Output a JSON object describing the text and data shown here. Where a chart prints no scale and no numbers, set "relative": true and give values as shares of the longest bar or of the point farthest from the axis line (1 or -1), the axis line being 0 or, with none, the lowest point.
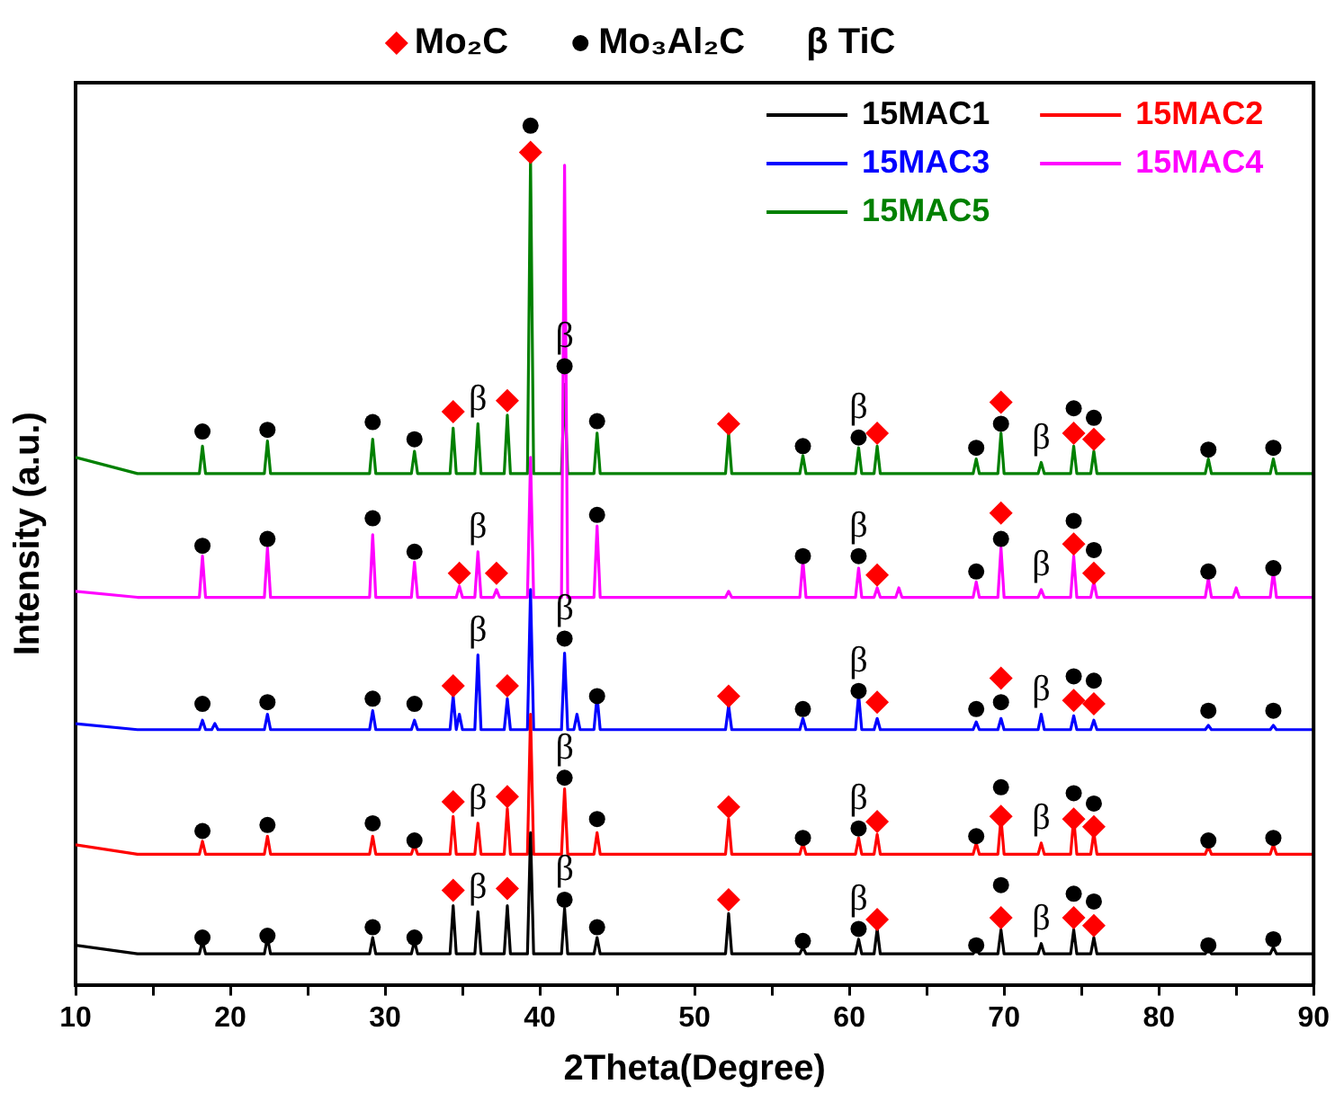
{
  "chart_data": {
    "type": "line",
    "relative": true,
    "xlabel": "2Theta(Degree)",
    "ylabel": "Intensity (a.u.)",
    "xlim": [
      10,
      90
    ],
    "xticks": [
      10,
      {
        "value": 15,
        "label": null
      },
      20,
      {
        "value": 25,
        "label": null
      },
      30,
      {
        "value": 35,
        "label": null
      },
      40,
      {
        "value": 45,
        "label": null
      },
      50,
      {
        "value": 55,
        "label": null
      },
      60,
      {
        "value": 65,
        "label": null
      },
      70,
      {
        "value": 75,
        "label": null
      },
      80,
      {
        "value": 85,
        "label": null
      },
      90
    ],
    "legend": "top right",
    "grid": false,
    "x": [
      10,
      14,
      18.0,
      18.2,
      18.4,
      18.8,
      19,
      19.2,
      22.2,
      22.4,
      22.6,
      29.0,
      29.2,
      29.4,
      31.7,
      31.9,
      32.1,
      34.2,
      34.4,
      34.6,
      34.8,
      35.0,
      35.8,
      36,
      36.2,
      37.0,
      37.2,
      37.4,
      37.7,
      37.9,
      38.1,
      39.2,
      39.4,
      39.6,
      41.4,
      41.6,
      41.8,
      42.2,
      42.4,
      42.6,
      43.5,
      43.7,
      43.9,
      52.0,
      52.2,
      52.4,
      56.8,
      57,
      57.2,
      60.4,
      60.6,
      60.8,
      61.6,
      61.8,
      62.0,
      63.0,
      63.2,
      63.4,
      68.0,
      68.2,
      68.4,
      69.6,
      69.8,
      70.0,
      72.2,
      72.4,
      72.6,
      74.3,
      74.5,
      74.7,
      75.6,
      75.8,
      76.0,
      83.0,
      83.2,
      83.4,
      84.8,
      85,
      85.2,
      87.2,
      87.4,
      87.6,
      90
    ],
    "series": [
      {
        "name": "15MAC1",
        "type": "line",
        "color": "#000000",
        "values": [
          0.046,
          0.036,
          0.036,
          0.051,
          0.036,
          0.036,
          0.036,
          0.036,
          0.036,
          0.055,
          0.036,
          0.036,
          0.055,
          0.036,
          0.036,
          0.051,
          0.036,
          0.036,
          0.092,
          0.036,
          0.036,
          0.036,
          0.036,
          0.085,
          0.036,
          0.036,
          0.036,
          0.036,
          0.036,
          0.092,
          0.036,
          0.036,
          0.177,
          0.036,
          0.036,
          0.089,
          0.036,
          0.036,
          0.036,
          0.036,
          0.036,
          0.055,
          0.036,
          0.036,
          0.083,
          0.036,
          0.036,
          0.044,
          0.036,
          0.036,
          0.053,
          0.036,
          0.036,
          0.065,
          0.036,
          0.036,
          0.036,
          0.036,
          0.036,
          0.042,
          0.036,
          0.036,
          0.064,
          0.036,
          0.036,
          0.048,
          0.036,
          0.036,
          0.064,
          0.036,
          0.036,
          0.055,
          0.036,
          0.036,
          0.042,
          0.036,
          0.036,
          0.036,
          0.036,
          0.036,
          0.044,
          0.036,
          0.036
        ]
      },
      {
        "name": "15MAC2",
        "type": "line",
        "color": "#ff0000",
        "values": [
          0.163,
          0.152,
          0.152,
          0.167,
          0.152,
          0.152,
          0.152,
          0.152,
          0.152,
          0.173,
          0.152,
          0.152,
          0.173,
          0.152,
          0.152,
          0.163,
          0.152,
          0.152,
          0.196,
          0.152,
          0.152,
          0.152,
          0.152,
          0.188,
          0.152,
          0.152,
          0.152,
          0.152,
          0.152,
          0.205,
          0.152,
          0.152,
          0.315,
          0.152,
          0.152,
          0.228,
          0.152,
          0.152,
          0.152,
          0.152,
          0.152,
          0.177,
          0.152,
          0.152,
          0.193,
          0.152,
          0.152,
          0.165,
          0.152,
          0.152,
          0.171,
          0.152,
          0.152,
          0.175,
          0.152,
          0.152,
          0.152,
          0.152,
          0.152,
          0.165,
          0.152,
          0.152,
          0.194,
          0.152,
          0.152,
          0.165,
          0.152,
          0.152,
          0.194,
          0.152,
          0.152,
          0.177,
          0.152,
          0.152,
          0.161,
          0.152,
          0.152,
          0.152,
          0.152,
          0.152,
          0.163,
          0.152,
          0.152
        ]
      },
      {
        "name": "15MAC3",
        "type": "line",
        "color": "#0000ff",
        "values": [
          0.304,
          0.297,
          0.297,
          0.308,
          0.297,
          0.297,
          0.304,
          0.297,
          0.297,
          0.315,
          0.297,
          0.297,
          0.319,
          0.297,
          0.297,
          0.308,
          0.297,
          0.297,
          0.336,
          0.297,
          0.315,
          0.297,
          0.297,
          0.384,
          0.297,
          0.297,
          0.297,
          0.297,
          0.297,
          0.333,
          0.297,
          0.297,
          0.46,
          0.297,
          0.297,
          0.386,
          0.297,
          0.297,
          0.315,
          0.297,
          0.297,
          0.336,
          0.297,
          0.297,
          0.325,
          0.297,
          0.297,
          0.31,
          0.297,
          0.297,
          0.338,
          0.297,
          0.297,
          0.31,
          0.297,
          0.297,
          0.297,
          0.297,
          0.297,
          0.306,
          0.297,
          0.297,
          0.31,
          0.297,
          0.297,
          0.315,
          0.297,
          0.297,
          0.313,
          0.297,
          0.297,
          0.308,
          0.297,
          0.297,
          0.302,
          0.297,
          0.297,
          0.297,
          0.297,
          0.297,
          0.302,
          0.297,
          0.297
        ]
      },
      {
        "name": "15MAC4",
        "type": "line",
        "color": "#ff00ff",
        "values": [
          0.458,
          0.451,
          0.451,
          0.499,
          0.451,
          0.451,
          0.451,
          0.451,
          0.451,
          0.509,
          0.451,
          0.451,
          0.524,
          0.451,
          0.451,
          0.492,
          0.451,
          0.451,
          0.451,
          0.451,
          0.464,
          0.451,
          0.451,
          0.504,
          0.451,
          0.451,
          0.46,
          0.451,
          0.451,
          0.451,
          0.451,
          0.451,
          0.614,
          0.451,
          0.451,
          0.954,
          0.451,
          0.451,
          0.451,
          0.451,
          0.451,
          0.534,
          0.451,
          0.451,
          0.458,
          0.451,
          0.451,
          0.494,
          0.451,
          0.451,
          0.485,
          0.451,
          0.451,
          0.462,
          0.451,
          0.451,
          0.462,
          0.451,
          0.451,
          0.469,
          0.451,
          0.451,
          0.509,
          0.451,
          0.451,
          0.46,
          0.451,
          0.451,
          0.499,
          0.451,
          0.451,
          0.469,
          0.451,
          0.451,
          0.473,
          0.451,
          0.451,
          0.462,
          0.451,
          0.451,
          0.481,
          0.451,
          0.451
        ]
      },
      {
        "name": "15MAC5",
        "type": "line",
        "color": "#008000",
        "values": [
          0.614,
          0.595,
          0.595,
          0.627,
          0.595,
          0.595,
          0.595,
          0.595,
          0.595,
          0.633,
          0.595,
          0.595,
          0.635,
          0.595,
          0.595,
          0.621,
          0.595,
          0.595,
          0.648,
          0.595,
          0.595,
          0.595,
          0.595,
          0.653,
          0.595,
          0.595,
          0.595,
          0.595,
          0.595,
          0.663,
          0.595,
          0.595,
          0.963,
          0.595,
          0.595,
          0.699,
          0.595,
          0.595,
          0.595,
          0.595,
          0.595,
          0.642,
          0.595,
          0.595,
          0.642,
          0.595,
          0.595,
          0.616,
          0.595,
          0.595,
          0.625,
          0.595,
          0.595,
          0.627,
          0.595,
          0.595,
          0.595,
          0.595,
          0.595,
          0.612,
          0.595,
          0.595,
          0.642,
          0.595,
          0.595,
          0.608,
          0.595,
          0.595,
          0.627,
          0.595,
          0.595,
          0.621,
          0.595,
          0.595,
          0.612,
          0.595,
          0.595,
          0.595,
          0.595,
          0.595,
          0.612,
          0.595,
          0.595
        ]
      },
      {
        "name": "Mo₂C",
        "type": "scatter",
        "marker": "diamond",
        "color": "#ff0000",
        "x": [
          34.4,
          37.9,
          52.2,
          61.8,
          69.8,
          74.5,
          75.8,
          34.4,
          37.9,
          52.2,
          61.8,
          69.8,
          74.5,
          75.8,
          34.4,
          37.9,
          52.2,
          61.8,
          69.8,
          74.5,
          75.8,
          34.8,
          37.2,
          61.8,
          69.8,
          74.5,
          75.8,
          34.4,
          37.9,
          39.4,
          52.2,
          61.8,
          69.8,
          74.5,
          75.8
        ],
        "values": [
          0.11,
          0.112,
          0.099,
          0.076,
          0.078,
          0.078,
          0.069,
          0.213,
          0.219,
          0.207,
          0.19,
          0.196,
          0.193,
          0.184,
          0.348,
          0.348,
          0.336,
          0.329,
          0.357,
          0.331,
          0.327,
          0.479,
          0.479,
          0.477,
          0.549,
          0.513,
          0.479,
          0.667,
          0.68,
          0.969,
          0.653,
          0.642,
          0.678,
          0.642,
          0.635
        ]
      },
      {
        "name": "Mo₃Al₂C",
        "type": "scatter",
        "marker": "circle",
        "color": "#000000",
        "x": [
          18.2,
          22.4,
          29.2,
          31.9,
          41.6,
          43.7,
          57,
          60.6,
          68.2,
          69.8,
          74.5,
          75.8,
          83.2,
          87.4,
          18.2,
          22.4,
          29.2,
          31.9,
          41.6,
          43.7,
          57,
          60.6,
          68.2,
          69.8,
          74.5,
          75.8,
          83.2,
          87.4,
          18.2,
          22.4,
          29.2,
          31.9,
          41.6,
          43.7,
          57,
          60.6,
          68.2,
          69.8,
          74.5,
          75.8,
          83.2,
          87.4,
          18.2,
          22.4,
          29.2,
          31.9,
          43.7,
          57,
          60.6,
          68.2,
          69.8,
          74.5,
          75.8,
          83.2,
          87.4,
          18.2,
          22.4,
          29.2,
          31.9,
          39.4,
          41.6,
          43.7,
          57,
          60.6,
          68.2,
          69.8,
          74.5,
          75.8,
          83.2,
          87.4
        ],
        "values": [
          0.055,
          0.057,
          0.067,
          0.055,
          0.099,
          0.067,
          0.051,
          0.065,
          0.046,
          0.116,
          0.106,
          0.097,
          0.046,
          0.053,
          0.179,
          0.186,
          0.188,
          0.168,
          0.241,
          0.193,
          0.171,
          0.182,
          0.173,
          0.23,
          0.223,
          0.211,
          0.168,
          0.171,
          0.327,
          0.329,
          0.333,
          0.327,
          0.403,
          0.336,
          0.321,
          0.342,
          0.321,
          0.329,
          0.359,
          0.354,
          0.319,
          0.319,
          0.511,
          0.519,
          0.543,
          0.504,
          0.547,
          0.499,
          0.499,
          0.481,
          0.519,
          0.54,
          0.506,
          0.481,
          0.485,
          0.644,
          0.646,
          0.655,
          0.635,
          1,
          0.72,
          0.656,
          0.627,
          0.637,
          0.625,
          0.653,
          0.671,
          0.66,
          0.623,
          0.625
        ]
      }
    ],
    "annotations": [
      "β TiC",
      {
        "text": "β",
        "x": 36,
        "y": 0.085
      },
      {
        "text": "β",
        "x": 41.6,
        "y": 0.089
      },
      {
        "text": "β",
        "x": 60.6,
        "y": 0.053
      },
      {
        "text": "β",
        "x": 72.4,
        "y": 0.048
      },
      {
        "text": "β",
        "x": 36,
        "y": 0.188
      },
      {
        "text": "β",
        "x": 41.6,
        "y": 0.228
      },
      {
        "text": "β",
        "x": 60.6,
        "y": 0.171
      },
      {
        "text": "β",
        "x": 72.4,
        "y": 0.165
      },
      {
        "text": "β",
        "x": 36,
        "y": 0.384
      },
      {
        "text": "β",
        "x": 41.6,
        "y": 0.386
      },
      {
        "text": "β",
        "x": 60.6,
        "y": 0.338
      },
      {
        "text": "β",
        "x": 72.4,
        "y": 0.315
      },
      {
        "text": "β",
        "x": 36,
        "y": 0.504
      },
      {
        "text": "β",
        "x": 60.6,
        "y": 0.485
      },
      {
        "text": "β",
        "x": 72.4,
        "y": 0.46
      },
      {
        "text": "β",
        "x": 36,
        "y": 0.653
      },
      {
        "text": "β",
        "x": 41.6,
        "y": 0.699
      },
      {
        "text": "β",
        "x": 60.6,
        "y": 0.625
      },
      {
        "text": "β",
        "x": 72.4,
        "y": 0.608
      }
    ]
  }
}
